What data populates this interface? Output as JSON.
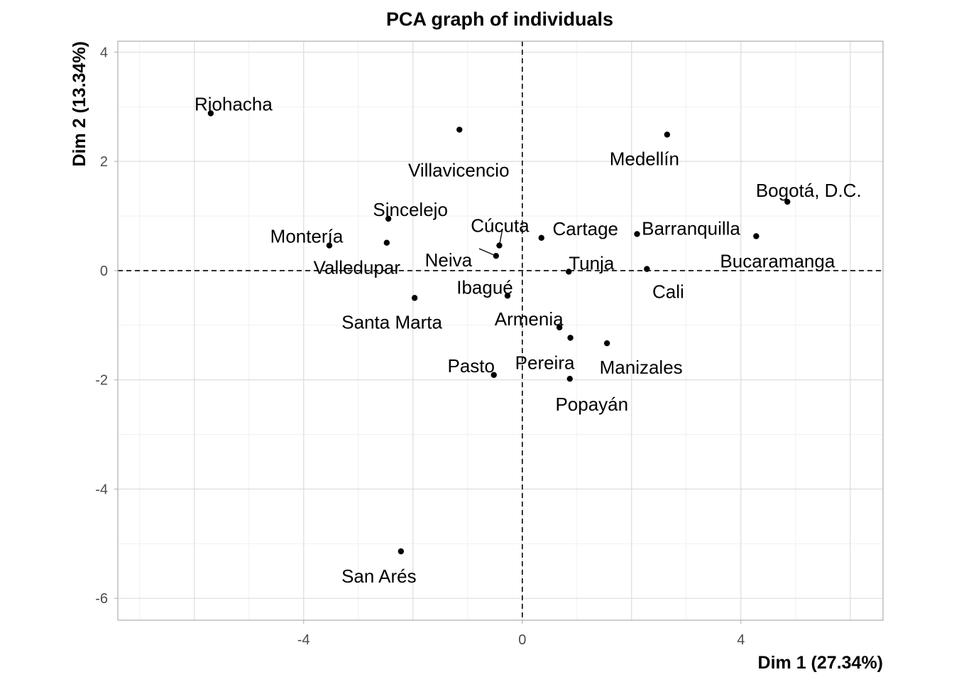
{
  "chart_data": {
    "type": "scatter",
    "title": "PCA graph of individuals",
    "xlabel": "Dim 1 (27.34%)",
    "ylabel": "Dim 2 (13.34%)",
    "xlim": [
      -7.4,
      6.6
    ],
    "ylim": [
      -6.4,
      4.2
    ],
    "xticks": [
      -4,
      0,
      4
    ],
    "yticks": [
      4,
      2,
      0,
      -2,
      -4,
      -6
    ],
    "grid": true,
    "zero_lines": "dashed",
    "points": [
      {
        "name": "Riohacha",
        "x": -5.7,
        "y": 2.88
      },
      {
        "name": "Villavicencio",
        "x": -1.15,
        "y": 2.58
      },
      {
        "name": "Medellín",
        "x": 2.65,
        "y": 2.49
      },
      {
        "name": "Bogotá, D.C.",
        "x": 4.85,
        "y": 1.26
      },
      {
        "name": "Sincelejo",
        "x": -2.45,
        "y": 0.95
      },
      {
        "name": "Montería",
        "x": -3.53,
        "y": 0.46
      },
      {
        "name": "Valledupar",
        "x": -2.48,
        "y": 0.51
      },
      {
        "name": "Cúcuta",
        "x": -0.42,
        "y": 0.46
      },
      {
        "name": "Neiva",
        "x": -0.48,
        "y": 0.27
      },
      {
        "name": "Cartage",
        "x": 0.35,
        "y": 0.6
      },
      {
        "name": "Barranquilla",
        "x": 2.1,
        "y": 0.67
      },
      {
        "name": "Bucaramanga",
        "x": 4.28,
        "y": 0.63
      },
      {
        "name": "Tunja",
        "x": 0.85,
        "y": -0.02
      },
      {
        "name": "Cali",
        "x": 2.28,
        "y": 0.03
      },
      {
        "name": "Ibagué",
        "x": -0.27,
        "y": -0.46
      },
      {
        "name": "Santa Marta",
        "x": -1.97,
        "y": -0.5
      },
      {
        "name": "Armenia",
        "x": 0.68,
        "y": -1.04
      },
      {
        "name": "Pereira",
        "x": 0.88,
        "y": -1.23
      },
      {
        "name": "Manizales",
        "x": 1.55,
        "y": -1.33
      },
      {
        "name": "Pasto",
        "x": -0.52,
        "y": -1.91
      },
      {
        "name": "Popayán",
        "x": 0.87,
        "y": -1.98
      },
      {
        "name": "San Arés",
        "x": -2.22,
        "y": -5.14
      }
    ]
  }
}
